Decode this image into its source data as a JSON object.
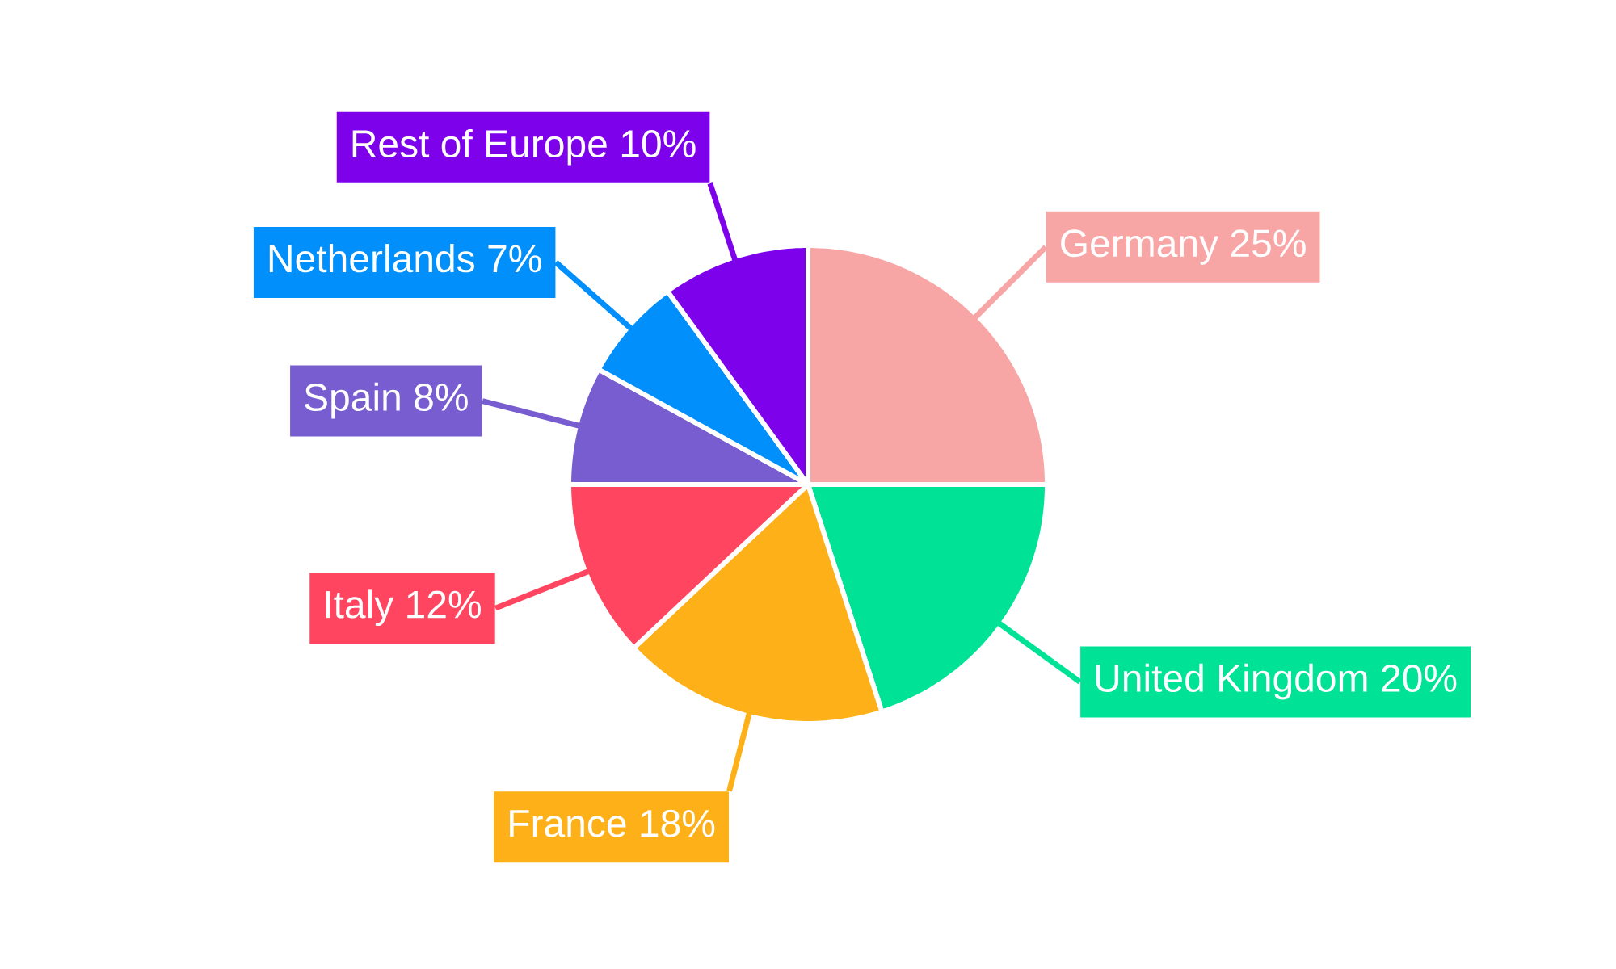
{
  "chart_data": {
    "type": "pie",
    "categories": [
      "Germany",
      "United Kingdom",
      "France",
      "Italy",
      "Spain",
      "Netherlands",
      "Rest of Europe"
    ],
    "values": [
      25,
      20,
      18,
      12,
      8,
      7,
      10
    ],
    "colors": [
      "#f8a5a6",
      "#00e396",
      "#feb019",
      "#ff4560",
      "#775dd0",
      "#008ffb",
      "#7d02eb"
    ],
    "value_labels": [
      "25%",
      "20%",
      "18%",
      "12%",
      "8%",
      "7%",
      "10%"
    ]
  }
}
